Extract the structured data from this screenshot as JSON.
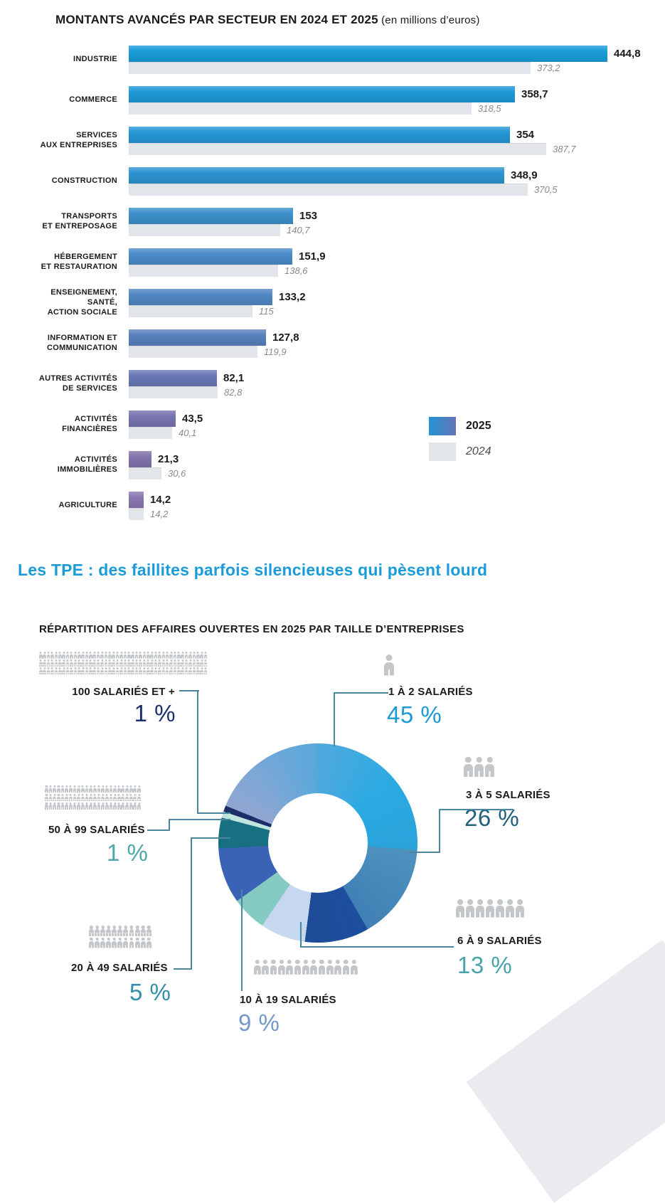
{
  "bar_chart": {
    "title": "MONTANTS AVANCÉS PAR SECTEUR EN 2024 ET 2025",
    "title_suffix": " (en millions d’euros)",
    "max_value": 444.8,
    "legend": {
      "label_2025": "2025",
      "label_2024": "2024",
      "color_2025_start": "#2094d6",
      "color_2025_end": "#6774b4",
      "color_2024": "#e2e5e9"
    },
    "rows": [
      {
        "label_lines": [
          "INDUSTRIE"
        ],
        "value_2025_display": "444,8",
        "value_2024_display": "373,2",
        "v2025": 444.8,
        "v2024": 373.2,
        "color": "#199cd8"
      },
      {
        "label_lines": [
          "COMMERCE"
        ],
        "value_2025_display": "358,7",
        "value_2024_display": "318,5",
        "v2025": 358.7,
        "v2024": 318.5,
        "color": "#1e9ad6"
      },
      {
        "label_lines": [
          "SERVICES",
          "AUX ENTREPRISES"
        ],
        "value_2025_display": "354",
        "value_2024_display": "387,7",
        "v2025": 354,
        "v2024": 387.7,
        "color": "#2497d3"
      },
      {
        "label_lines": [
          "CONSTRUCTION"
        ],
        "value_2025_display": "348,9",
        "value_2024_display": "370,5",
        "v2025": 348.9,
        "v2024": 370.5,
        "color": "#2c94d0"
      },
      {
        "label_lines": [
          "TRANSPORTS",
          "ET ENTREPOSAGE"
        ],
        "value_2025_display": "153",
        "value_2024_display": "140,7",
        "v2025": 153,
        "v2024": 140.7,
        "color": "#3d90cb"
      },
      {
        "label_lines": [
          "HÉBERGEMENT",
          "ET RESTAURATION"
        ],
        "value_2025_display": "151,9",
        "value_2024_display": "138,6",
        "v2025": 151.9,
        "v2024": 138.6,
        "color": "#4a8cc7"
      },
      {
        "label_lines": [
          "ENSEIGNEMENT,",
          "SANTÉ,",
          "ACTION SOCIALE"
        ],
        "value_2025_display": "133,2",
        "value_2024_display": "115",
        "v2025": 133.2,
        "v2024": 115,
        "color": "#5187c3"
      },
      {
        "label_lines": [
          "INFORMATION ET",
          "COMMUNICATION"
        ],
        "value_2025_display": "127,8",
        "value_2024_display": "119,9",
        "v2025": 127.8,
        "v2024": 119.9,
        "color": "#5981bd"
      },
      {
        "label_lines": [
          "AUTRES ACTIVITÉS",
          "DE SERVICES"
        ],
        "value_2025_display": "82,1",
        "value_2024_display": "82,8",
        "v2025": 82.1,
        "v2024": 82.8,
        "color": "#6a79b6"
      },
      {
        "label_lines": [
          "ACTIVITÉS",
          "FINANCIÈRES"
        ],
        "value_2025_display": "43,5",
        "value_2024_display": "40,1",
        "v2025": 43.5,
        "v2024": 40.1,
        "color": "#7874b0"
      },
      {
        "label_lines": [
          "ACTIVITÉS",
          "IMMOBILIÈRES"
        ],
        "value_2025_display": "21,3",
        "value_2024_display": "30,6",
        "v2025": 21.3,
        "v2024": 30.6,
        "color": "#8173ac"
      },
      {
        "label_lines": [
          "AGRICULTURE"
        ],
        "value_2025_display": "14,2",
        "value_2024_display": "14,2",
        "v2025": 14.2,
        "v2024": 14.2,
        "color": "#8a77b1"
      }
    ]
  },
  "headline": "Les TPE : des faillites parfois silencieuses qui pèsent lourd",
  "headline_color": "#1b9cd8",
  "donut_chart": {
    "title": "RÉPARTITION DES AFFAIRES OUVERTES EN 2025 PAR TAILLE D’ENTREPRISES",
    "callouts": [
      {
        "id": "s1-2",
        "label": "1 À 2 SALARIÉS",
        "pct_display": "45 %",
        "value": 45,
        "pct_color": "#1c9ad6",
        "slice_color": "#2baae2",
        "people_rows": [
          1
        ]
      },
      {
        "id": "s3-5",
        "label": "3 À 5 SALARIÉS",
        "pct_display": "26 %",
        "value": 26,
        "pct_color": "#20607f",
        "slice_color": "#1d4f9e",
        "people_rows": [
          3
        ]
      },
      {
        "id": "s6-9",
        "label": "6 À 9 SALARIÉS",
        "pct_display": "13 %",
        "value": 13,
        "pct_color": "#47a2ab",
        "slice_color": "#c6d8ef",
        "people_rows": [
          7
        ]
      },
      {
        "id": "s10-19",
        "label": "10 À 19 SALARIÉS",
        "pct_display": "9 %",
        "value": 9,
        "pct_color": "#7396cb",
        "slice_color": "#3a63b5",
        "people_rows": [
          13
        ]
      },
      {
        "id": "s20-49",
        "label": "20 À 49 SALARIÉS",
        "pct_display": "5 %",
        "value": 5,
        "pct_color": "#2e8fa6",
        "slice_color": "#176f82",
        "people_rows": [
          11,
          11
        ]
      },
      {
        "id": "s50-99",
        "label": "50 À 99 SALARIÉS",
        "pct_display": "1 %",
        "value": 1,
        "pct_color": "#4aa8a8",
        "slice_color": "#c0e5dc",
        "people_rows": [
          24,
          24,
          24
        ]
      },
      {
        "id": "s100",
        "label": "100 SALARIÉS ET +",
        "pct_display": "1 %",
        "value": 1,
        "pct_color": "#1b2f6e",
        "slice_color": "#1c2f6b",
        "people_rows": [
          44,
          44,
          44
        ]
      }
    ]
  },
  "chart_data": [
    {
      "type": "bar",
      "orientation": "horizontal",
      "title": "MONTANTS AVANCÉS PAR SECTEUR EN 2024 ET 2025 (en millions d’euros)",
      "categories": [
        "INDUSTRIE",
        "COMMERCE",
        "SERVICES AUX ENTREPRISES",
        "CONSTRUCTION",
        "TRANSPORTS ET ENTREPOSAGE",
        "HÉBERGEMENT ET RESTAURATION",
        "ENSEIGNEMENT, SANTÉ, ACTION SOCIALE",
        "INFORMATION ET COMMUNICATION",
        "AUTRES ACTIVITÉS DE SERVICES",
        "ACTIVITÉS FINANCIÈRES",
        "ACTIVITÉS IMMOBILIÈRES",
        "AGRICULTURE"
      ],
      "series": [
        {
          "name": "2025",
          "values": [
            444.8,
            358.7,
            354,
            348.9,
            153,
            151.9,
            133.2,
            127.8,
            82.1,
            43.5,
            21.3,
            14.2
          ]
        },
        {
          "name": "2024",
          "values": [
            373.2,
            318.5,
            387.7,
            370.5,
            140.7,
            138.6,
            115,
            119.9,
            82.8,
            40.1,
            30.6,
            14.2
          ]
        }
      ],
      "unit": "millions d'euros",
      "xlim": [
        0,
        460
      ],
      "legend_position": "right-bottom",
      "grid": false
    },
    {
      "type": "pie",
      "subtype": "donut",
      "title": "RÉPARTITION DES AFFAIRES OUVERTES EN 2025 PAR TAILLE D’ENTREPRISES",
      "categories": [
        "1 À 2 SALARIÉS",
        "3 À 5 SALARIÉS",
        "6 À 9 SALARIÉS",
        "10 À 19 SALARIÉS",
        "20 À 49 SALARIÉS",
        "50 À 99 SALARIÉS",
        "100 SALARIÉS ET +"
      ],
      "values": [
        45,
        26,
        13,
        9,
        5,
        1,
        1
      ],
      "unit": "%",
      "start_angle_deg_clockwise_from_top": 292,
      "colors": [
        "#2baae2",
        "#1d4f9e",
        "#c6d8ef",
        "#3a63b5",
        "#176f82",
        "#c0e5dc",
        "#1c2f6b"
      ]
    }
  ]
}
